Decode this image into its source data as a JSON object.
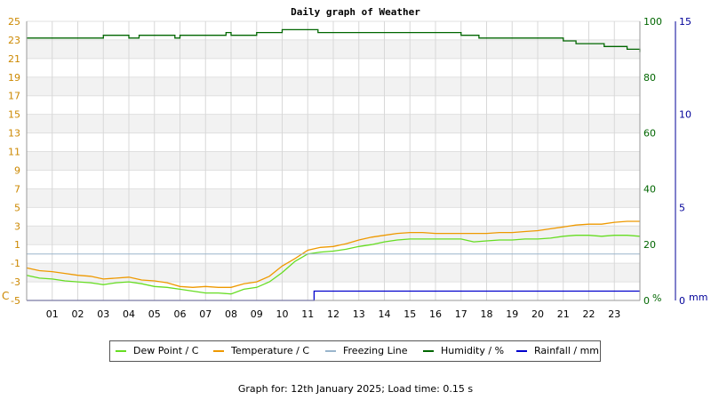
{
  "chart_data": {
    "type": "line",
    "title": "Daily graph of Weather",
    "x_ticks": [
      "01",
      "02",
      "03",
      "04",
      "05",
      "06",
      "07",
      "08",
      "09",
      "10",
      "11",
      "12",
      "13",
      "14",
      "15",
      "16",
      "17",
      "18",
      "19",
      "20",
      "21",
      "22",
      "23"
    ],
    "left_axis": {
      "unit": "C",
      "ticks": [
        25,
        23,
        21,
        19,
        17,
        15,
        13,
        11,
        9,
        7,
        5,
        3,
        1,
        -1,
        -3,
        -5
      ],
      "range": [
        -5,
        25
      ],
      "color": "#cc8800"
    },
    "humidity_axis": {
      "unit": "%",
      "ticks": [
        100,
        80,
        60,
        40,
        20,
        0
      ],
      "range": [
        0,
        100
      ],
      "color": "#006600"
    },
    "rain_axis": {
      "unit": "mm",
      "ticks": [
        15,
        10,
        5,
        0
      ],
      "range": [
        0,
        15
      ],
      "color": "#000099"
    },
    "x_range": [
      0,
      24
    ],
    "series": [
      {
        "name": "Dew Point / C",
        "color": "#66dd22",
        "x": [
          0,
          0.5,
          1,
          1.5,
          2,
          2.5,
          3,
          3.5,
          4,
          4.5,
          5,
          5.5,
          6,
          6.5,
          7,
          7.5,
          8,
          8.5,
          9,
          9.5,
          10,
          10.5,
          11,
          11.5,
          12,
          12.5,
          13,
          13.5,
          14,
          14.5,
          15,
          15.5,
          16,
          16.5,
          17,
          17.5,
          18,
          18.5,
          19,
          19.5,
          20,
          20.5,
          21,
          21.5,
          22,
          22.5,
          23,
          23.5,
          24
        ],
        "values": [
          -2.3,
          -2.6,
          -2.7,
          -2.9,
          -3.0,
          -3.1,
          -3.3,
          -3.1,
          -3.0,
          -3.2,
          -3.5,
          -3.6,
          -3.8,
          -4.0,
          -4.2,
          -4.2,
          -4.3,
          -3.8,
          -3.6,
          -3.0,
          -2.0,
          -0.8,
          0.0,
          0.2,
          0.3,
          0.5,
          0.8,
          1.0,
          1.3,
          1.5,
          1.6,
          1.6,
          1.6,
          1.6,
          1.6,
          1.3,
          1.4,
          1.5,
          1.5,
          1.6,
          1.6,
          1.7,
          1.9,
          2.0,
          2.0,
          1.9,
          2.0,
          2.0,
          1.9
        ]
      },
      {
        "name": "Temperature / C",
        "color": "#ee9900",
        "x": [
          0,
          0.5,
          1,
          1.5,
          2,
          2.5,
          3,
          3.5,
          4,
          4.5,
          5,
          5.5,
          6,
          6.5,
          7,
          7.5,
          8,
          8.5,
          9,
          9.5,
          10,
          10.5,
          11,
          11.5,
          12,
          12.5,
          13,
          13.5,
          14,
          14.5,
          15,
          15.5,
          16,
          16.5,
          17,
          17.5,
          18,
          18.5,
          19,
          19.5,
          20,
          20.5,
          21,
          21.5,
          22,
          22.5,
          23,
          23.5,
          24
        ],
        "values": [
          -1.5,
          -1.8,
          -1.9,
          -2.1,
          -2.3,
          -2.4,
          -2.7,
          -2.6,
          -2.5,
          -2.8,
          -2.9,
          -3.1,
          -3.5,
          -3.6,
          -3.5,
          -3.6,
          -3.6,
          -3.2,
          -3.0,
          -2.4,
          -1.3,
          -0.5,
          0.4,
          0.7,
          0.8,
          1.1,
          1.5,
          1.8,
          2.0,
          2.2,
          2.3,
          2.3,
          2.2,
          2.2,
          2.2,
          2.2,
          2.2,
          2.3,
          2.3,
          2.4,
          2.5,
          2.7,
          2.9,
          3.1,
          3.2,
          3.2,
          3.4,
          3.5,
          3.5
        ]
      },
      {
        "name": "Freezing Line",
        "color": "#9ab5cc",
        "x": [
          0,
          24
        ],
        "values": [
          0,
          0
        ]
      },
      {
        "name": "Humidity / %",
        "color": "#006600",
        "x": [
          0,
          1,
          2,
          2.9,
          3,
          4,
          4.4,
          5,
          5.8,
          6,
          7,
          7.8,
          8,
          8.4,
          9,
          9.8,
          10,
          11,
          11.4,
          12,
          13,
          14,
          15,
          16,
          17,
          17.7,
          18,
          18.8,
          19,
          20,
          20.4,
          21,
          21.5,
          22,
          22.6,
          23,
          23.5,
          24
        ],
        "values": [
          94,
          94,
          94,
          94,
          95,
          94,
          95,
          95,
          94,
          95,
          95,
          96,
          95,
          95,
          96,
          96,
          97,
          97,
          96,
          96,
          96,
          96,
          96,
          96,
          95,
          94,
          94,
          94,
          94,
          94,
          94,
          93,
          92,
          92,
          91,
          91,
          90,
          89
        ]
      },
      {
        "name": "Rainfall / mm",
        "color": "#0000cc",
        "x": [
          0,
          11.2,
          11.25,
          24
        ],
        "values": [
          0,
          0,
          0.5,
          0.5
        ]
      }
    ],
    "grid": true,
    "legend_position": "bottom"
  },
  "footer": {
    "text": "Graph for: 12th January 2025; Load time: 0.15 s"
  }
}
